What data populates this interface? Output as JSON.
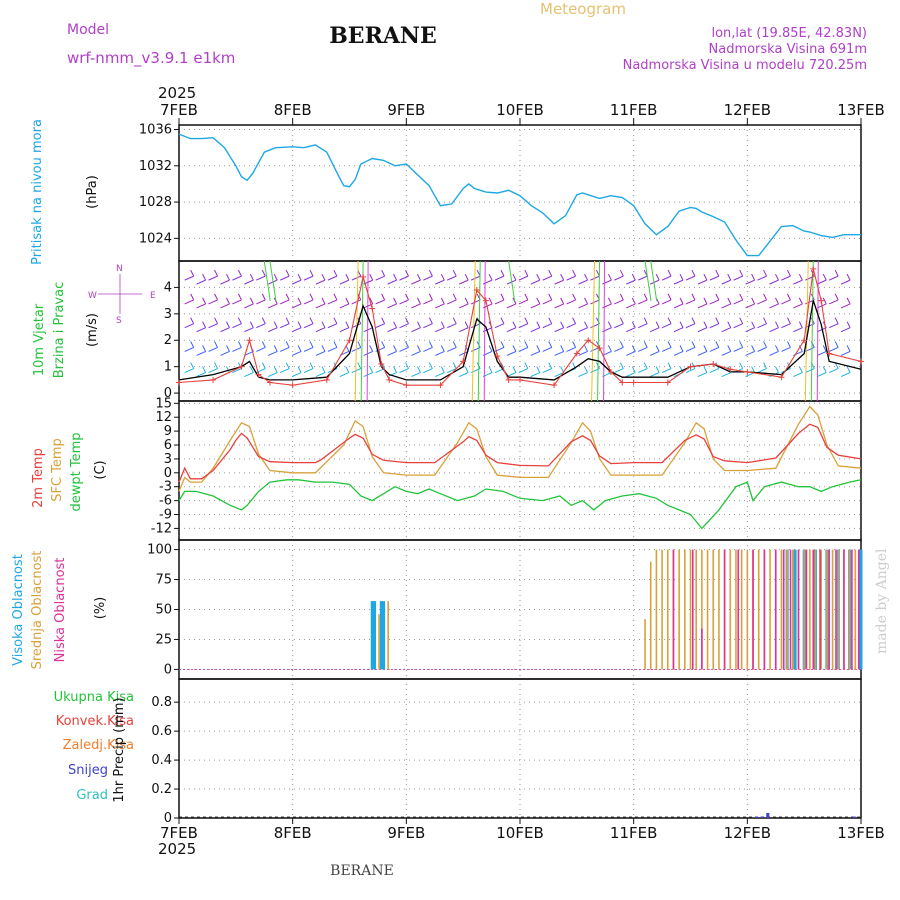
{
  "header": {
    "model_label": "Model",
    "model_name": "wrf-nmm_v3.9.1  e1km",
    "title": "BERANE",
    "meteogram": "Meteogram",
    "lonlat": "lon,lat (19.85E, 42.83N)",
    "altitude": "Nadmorska Visina 691m",
    "model_altitude": "Nadmorska Visina u modelu 720.25m",
    "year": "2025"
  },
  "footer": {
    "station": "BERANE",
    "credit": "made by Angel"
  },
  "colors": {
    "pressure": "#1ea7e6",
    "wind_speed": "#000000",
    "wind_gust": "#e8413c",
    "temp_2m": "#e8413c",
    "temp_sfc": "#d9a13a",
    "dewpoint": "#22c33a",
    "cloud_high": "#1ea7e6",
    "cloud_mid": "#d9a13a",
    "cloud_low": "#e0309a",
    "precip_total": "#22c33a",
    "precip_conv": "#e8413c",
    "precip_frz": "#f07d2a",
    "snow": "#4040d0",
    "graupel": "#30c0c0",
    "left_label_purple": "#b040c8"
  },
  "chart_data": [
    {
      "type": "line",
      "panel": "pressure",
      "ylabel": "(hPa)",
      "left_title": "Pritisak na nivou mora",
      "x_ticks": [
        "7FEB",
        "8FEB",
        "9FEB",
        "10FEB",
        "11FEB",
        "12FEB",
        "13FEB"
      ],
      "ylim": [
        1021.5,
        1036.5
      ],
      "yticks": [
        1024,
        1028,
        1032,
        1036
      ],
      "series": [
        {
          "x": [
            0,
            0.1,
            0.2,
            0.3,
            0.4,
            0.5,
            0.55,
            0.6,
            0.65,
            0.75,
            0.85,
            1.0,
            1.1,
            1.2,
            1.3,
            1.4,
            1.45,
            1.5,
            1.55,
            1.6,
            1.7,
            1.8,
            1.9,
            2.0,
            2.1,
            2.2,
            2.3,
            2.4,
            2.5,
            2.55,
            2.6,
            2.7,
            2.8,
            2.9,
            3.0,
            3.1,
            3.2,
            3.3,
            3.4,
            3.5,
            3.55,
            3.6,
            3.7,
            3.8,
            3.9,
            4.0,
            4.1,
            4.2,
            4.3,
            4.4,
            4.5,
            4.55,
            4.6,
            4.7,
            4.8,
            4.9,
            5.0,
            5.1,
            5.2,
            5.3,
            5.4,
            5.5,
            5.55,
            5.65,
            5.75,
            5.85,
            6.0
          ],
          "values": [
            1035.5,
            1035.0,
            1035.0,
            1035.1,
            1034.0,
            1032.0,
            1030.8,
            1030.4,
            1031.2,
            1033.5,
            1034.0,
            1034.1,
            1034.0,
            1034.3,
            1033.5,
            1031.0,
            1029.8,
            1029.7,
            1030.5,
            1032.2,
            1032.8,
            1032.6,
            1032.0,
            1032.2,
            1031.0,
            1029.8,
            1027.6,
            1027.8,
            1029.5,
            1030.0,
            1029.5,
            1029.1,
            1029.0,
            1029.3,
            1028.7,
            1027.6,
            1026.8,
            1025.6,
            1026.5,
            1028.8,
            1029.0,
            1028.8,
            1028.4,
            1028.7,
            1028.5,
            1027.6,
            1025.6,
            1024.4,
            1025.3,
            1027.0,
            1027.4,
            1027.3,
            1026.9,
            1026.4,
            1025.8,
            1023.8,
            1022.1,
            1022.1,
            1023.7,
            1025.3,
            1025.4,
            1024.8,
            1024.7,
            1024.3,
            1024.1,
            1024.4,
            1024.4
          ]
        }
      ]
    },
    {
      "type": "line",
      "panel": "wind",
      "ylabel": "(m/s)",
      "left_title_1": "10m Vjetar",
      "left_title_2": "Brzina i Pravac",
      "compass": {
        "n": "N",
        "s": "S",
        "w": "W",
        "e": "E"
      },
      "ylim": [
        -0.3,
        5.0
      ],
      "yticks": [
        0,
        1,
        2,
        3,
        4
      ],
      "series": [
        {
          "name": "speed",
          "x": [
            0,
            0.3,
            0.55,
            0.62,
            0.7,
            0.8,
            1.0,
            1.3,
            1.5,
            1.62,
            1.7,
            1.78,
            1.85,
            2.0,
            2.3,
            2.5,
            2.62,
            2.7,
            2.8,
            2.9,
            3.0,
            3.3,
            3.5,
            3.6,
            3.7,
            3.8,
            3.9,
            4.0,
            4.3,
            4.5,
            4.7,
            4.85,
            5.0,
            5.3,
            5.5,
            5.58,
            5.65,
            5.72,
            6.0
          ],
          "values": [
            0.5,
            0.7,
            1.0,
            1.2,
            0.6,
            0.5,
            0.5,
            0.6,
            1.5,
            3.3,
            2.5,
            1.0,
            0.7,
            0.5,
            0.5,
            1.0,
            2.8,
            2.5,
            1.2,
            0.6,
            0.6,
            0.5,
            1.0,
            1.3,
            1.2,
            0.8,
            0.6,
            0.6,
            0.6,
            1.0,
            1.1,
            0.8,
            0.8,
            0.7,
            1.5,
            3.5,
            2.6,
            1.2,
            0.9
          ]
        },
        {
          "name": "gust",
          "x": [
            0,
            0.3,
            0.55,
            0.62,
            0.7,
            0.8,
            1.0,
            1.3,
            1.5,
            1.62,
            1.7,
            1.78,
            1.85,
            2.0,
            2.3,
            2.5,
            2.62,
            2.7,
            2.8,
            2.9,
            3.0,
            3.3,
            3.5,
            3.6,
            3.7,
            3.8,
            3.9,
            4.0,
            4.3,
            4.5,
            4.7,
            4.85,
            5.0,
            5.3,
            5.5,
            5.58,
            5.65,
            5.72,
            6.0
          ],
          "values": [
            0.4,
            0.5,
            1.0,
            2.0,
            0.7,
            0.4,
            0.3,
            0.5,
            2.0,
            4.4,
            3.2,
            1.1,
            0.5,
            0.3,
            0.3,
            1.2,
            3.9,
            3.5,
            1.4,
            0.5,
            0.5,
            0.3,
            1.5,
            2.0,
            1.7,
            0.8,
            0.4,
            0.4,
            0.4,
            1.0,
            1.1,
            0.9,
            0.8,
            0.6,
            2.0,
            4.7,
            3.5,
            1.5,
            1.2
          ]
        }
      ]
    },
    {
      "type": "line",
      "panel": "temperature",
      "ylabel": "(C)",
      "left_title_1": "2m Temp",
      "left_title_2": "SFC Temp",
      "left_title_3": "dewpt Temp",
      "ylim": [
        -14.5,
        15.5
      ],
      "yticks": [
        -12,
        -9,
        -6,
        -3,
        0,
        3,
        6,
        9,
        12,
        15
      ],
      "series": [
        {
          "name": "2m",
          "x": [
            0,
            0.05,
            0.1,
            0.2,
            0.3,
            0.45,
            0.5,
            0.55,
            0.6,
            0.7,
            0.8,
            1.0,
            1.2,
            1.25,
            1.5,
            1.55,
            1.62,
            1.7,
            1.8,
            2.0,
            2.25,
            2.5,
            2.55,
            2.62,
            2.7,
            2.8,
            3.0,
            3.25,
            3.45,
            3.55,
            3.62,
            3.7,
            3.8,
            4.0,
            4.25,
            4.45,
            4.55,
            4.62,
            4.7,
            4.8,
            5.0,
            5.25,
            5.45,
            5.55,
            5.62,
            5.7,
            5.8,
            6.0
          ],
          "values": [
            -2,
            1,
            -1.3,
            -1.3,
            0.5,
            5,
            7,
            8.5,
            7.5,
            3.5,
            2.4,
            2.2,
            2.2,
            2.8,
            7.5,
            8.3,
            7.5,
            4,
            2.7,
            2.2,
            2.2,
            6.7,
            7.8,
            7,
            3.8,
            2.2,
            1.6,
            1.5,
            6.7,
            8,
            7,
            3.6,
            2,
            2.2,
            2.2,
            7,
            8.2,
            7.3,
            3.5,
            2.6,
            2.2,
            3.2,
            8.5,
            10.5,
            9.8,
            5.5,
            3.8,
            3
          ]
        },
        {
          "name": "sfc",
          "x": [
            0,
            0.05,
            0.1,
            0.2,
            0.3,
            0.45,
            0.55,
            0.62,
            0.7,
            0.8,
            1.0,
            1.2,
            1.45,
            1.55,
            1.62,
            1.7,
            1.8,
            2.0,
            2.25,
            2.45,
            2.55,
            2.62,
            2.7,
            2.8,
            3.0,
            3.25,
            3.45,
            3.55,
            3.62,
            3.7,
            3.8,
            4.0,
            4.25,
            4.45,
            4.55,
            4.62,
            4.7,
            4.8,
            5.0,
            5.25,
            5.45,
            5.55,
            5.62,
            5.7,
            5.8,
            6.0
          ],
          "values": [
            -4,
            -1,
            -2,
            -2,
            1,
            7,
            10.8,
            10,
            4,
            0.5,
            0,
            0,
            6,
            11.2,
            10,
            3.5,
            0,
            -0.5,
            -0.5,
            6.5,
            10.8,
            9.5,
            3.5,
            -0.5,
            -1,
            -1,
            6.5,
            10.8,
            9,
            3,
            -0.5,
            -0.5,
            -0.5,
            6.5,
            10.8,
            9.5,
            3,
            0.5,
            0.5,
            1,
            10.5,
            14.3,
            12.5,
            6,
            1.5,
            1
          ]
        },
        {
          "name": "dewpt",
          "x": [
            0,
            0.05,
            0.15,
            0.3,
            0.45,
            0.55,
            0.6,
            0.7,
            0.8,
            0.95,
            1.05,
            1.2,
            1.35,
            1.5,
            1.6,
            1.7,
            1.8,
            1.9,
            2.0,
            2.1,
            2.2,
            2.3,
            2.45,
            2.6,
            2.7,
            2.85,
            3.0,
            3.2,
            3.35,
            3.45,
            3.55,
            3.65,
            3.75,
            3.9,
            4.05,
            4.2,
            4.3,
            4.4,
            4.5,
            4.6,
            4.75,
            4.9,
            5.0,
            5.05,
            5.15,
            5.3,
            5.45,
            5.55,
            5.65,
            5.75,
            5.9,
            6.0
          ],
          "values": [
            -6,
            -4,
            -4,
            -5,
            -7,
            -8,
            -7,
            -4,
            -2,
            -1.5,
            -1.5,
            -2,
            -2,
            -2.5,
            -5,
            -6,
            -4.5,
            -3,
            -4,
            -4.5,
            -3.5,
            -4.5,
            -6,
            -5,
            -3.5,
            -4,
            -5.5,
            -6,
            -5,
            -7,
            -6,
            -8,
            -6,
            -5,
            -4.5,
            -5.5,
            -7,
            -8,
            -9,
            -12,
            -8,
            -3,
            -2,
            -6,
            -3,
            -2,
            -3,
            -3,
            -4,
            -3,
            -2,
            -1.5
          ]
        }
      ]
    },
    {
      "type": "bar",
      "panel": "cloud",
      "ylabel": "(%)",
      "left_title_1": "Visoka Oblacnost",
      "left_title_2": "Srednja Oblacnost",
      "left_title_3": "Niska Oblacnost",
      "ylim": [
        -8,
        108
      ],
      "yticks": [
        0,
        25,
        50,
        75,
        100
      ],
      "series": [
        {
          "name": "high",
          "x": [
            1.7,
            1.72,
            1.78,
            1.8,
            5.35,
            5.42,
            5.5,
            5.6,
            5.7,
            5.8,
            5.9,
            6.0
          ],
          "values": [
            57,
            57,
            57,
            57,
            100,
            100,
            100,
            100,
            100,
            100,
            100,
            100
          ]
        },
        {
          "name": "mid",
          "x": [
            1.76,
            1.84,
            4.1,
            4.15,
            4.2,
            4.25,
            4.3,
            4.35,
            4.4,
            4.45,
            4.5,
            4.55,
            4.6,
            4.65,
            4.7,
            4.75,
            4.8,
            4.85,
            4.9,
            4.95,
            5.0,
            5.05,
            5.1,
            5.15,
            5.2,
            5.25,
            5.3,
            5.35,
            5.4,
            5.45,
            5.5,
            5.55,
            5.6,
            5.65,
            5.7,
            5.75,
            5.8,
            5.85,
            5.9,
            5.95
          ],
          "values": [
            46,
            57,
            42,
            90,
            100,
            100,
            100,
            100,
            100,
            100,
            100,
            100,
            100,
            100,
            100,
            100,
            100,
            100,
            100,
            100,
            100,
            100,
            100,
            100,
            100,
            100,
            100,
            100,
            100,
            100,
            100,
            100,
            100,
            100,
            100,
            100,
            100,
            100,
            100,
            100
          ]
        },
        {
          "name": "low",
          "x": [
            4.35,
            4.52,
            4.6,
            4.8,
            4.92,
            5.05,
            5.15,
            5.25,
            5.32,
            5.38,
            5.45,
            5.52,
            5.58,
            5.64,
            5.72,
            5.78,
            5.85,
            5.92,
            5.98
          ],
          "values": [
            100,
            100,
            34,
            100,
            100,
            100,
            100,
            100,
            100,
            100,
            100,
            100,
            100,
            100,
            100,
            100,
            100,
            100,
            100
          ]
        }
      ]
    },
    {
      "type": "bar",
      "panel": "precip",
      "ylabel": "1hr Precip (mm)",
      "left_title_1": "Ukupna Kisa",
      "left_title_2": "Konvek.Kisa",
      "left_title_3": "Zaledj.Kisa",
      "left_title_4": "Snijeg",
      "left_title_5": "Grad",
      "ylim": [
        0,
        0.96
      ],
      "yticks": [
        0,
        0.2,
        0.4,
        0.6,
        0.8
      ],
      "x_ticks": [
        "7FEB",
        "8FEB",
        "9FEB",
        "10FEB",
        "11FEB",
        "12FEB",
        "13FEB"
      ],
      "series": [
        {
          "name": "snow",
          "x": [
            5.08,
            5.13,
            5.18,
            5.94
          ],
          "values": [
            0.01,
            0.01,
            0.035,
            0.01
          ]
        }
      ]
    }
  ]
}
